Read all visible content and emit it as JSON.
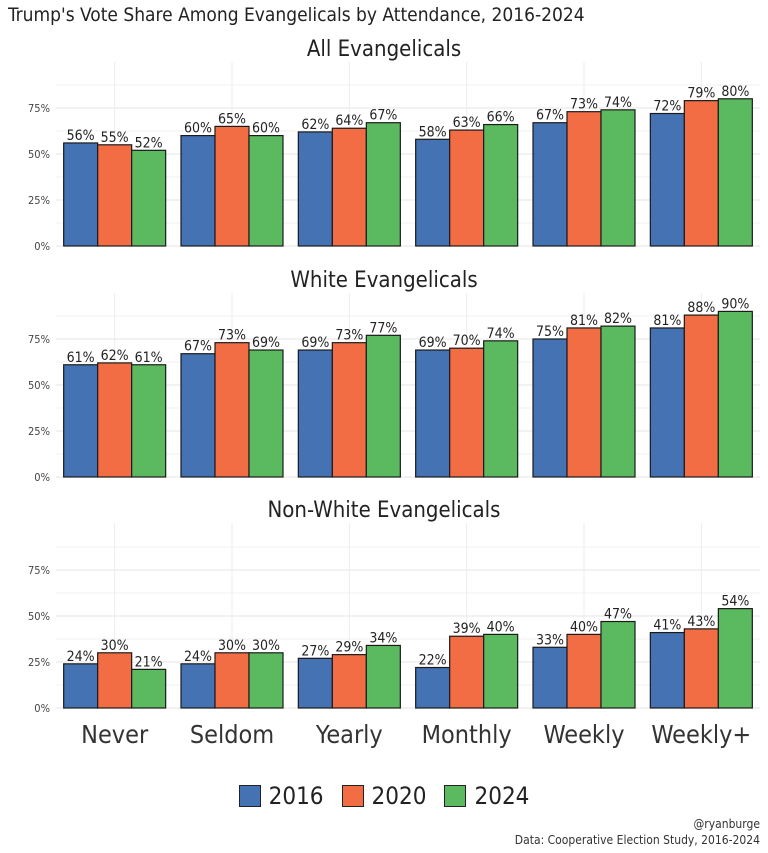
{
  "chart_data": {
    "type": "bar",
    "title": "Trump's Vote Share Among Evangelicals by Attendance, 2016-2024",
    "categories": [
      "Never",
      "Seldom",
      "Yearly",
      "Monthly",
      "Weekly",
      "Weekly+"
    ],
    "series_names": [
      "2016",
      "2020",
      "2024"
    ],
    "colors": {
      "2016": "#4472b2",
      "2020": "#f26d44",
      "2024": "#5bba5f"
    },
    "ylim": [
      0,
      0.97
    ],
    "yticks": [
      "0%",
      "25%",
      "50%",
      "75%"
    ],
    "grid": true,
    "legend_position": "bottom",
    "panels": [
      {
        "title": "All Evangelicals",
        "series": [
          {
            "name": "2016",
            "values": [
              56,
              60,
              62,
              58,
              67,
              72
            ]
          },
          {
            "name": "2020",
            "values": [
              55,
              65,
              64,
              63,
              73,
              79
            ]
          },
          {
            "name": "2024",
            "values": [
              52,
              60,
              67,
              66,
              74,
              80
            ]
          }
        ]
      },
      {
        "title": "White Evangelicals",
        "series": [
          {
            "name": "2016",
            "values": [
              61,
              67,
              69,
              69,
              75,
              81
            ]
          },
          {
            "name": "2020",
            "values": [
              62,
              73,
              73,
              70,
              81,
              88
            ]
          },
          {
            "name": "2024",
            "values": [
              61,
              69,
              77,
              74,
              82,
              90
            ]
          }
        ]
      },
      {
        "title": "Non-White Evangelicals",
        "series": [
          {
            "name": "2016",
            "values": [
              24,
              24,
              27,
              22,
              33,
              41
            ]
          },
          {
            "name": "2020",
            "values": [
              30,
              30,
              29,
              39,
              40,
              43
            ]
          },
          {
            "name": "2024",
            "values": [
              21,
              30,
              34,
              40,
              47,
              54
            ]
          }
        ]
      }
    ]
  },
  "credits": {
    "handle": "@ryanburge",
    "source": "Data: Cooperative Election Study, 2016-2024"
  }
}
